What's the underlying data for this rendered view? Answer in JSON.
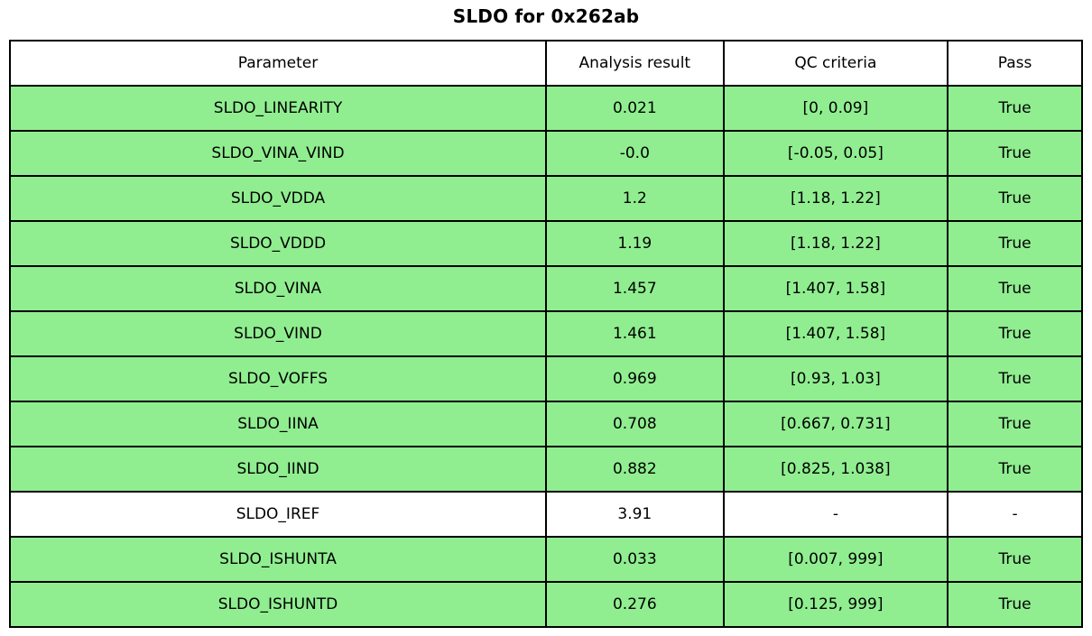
{
  "title": "SLDO for 0x262ab",
  "colors": {
    "pass_green": "#90EE90",
    "plain_white": "#ffffff",
    "border": "#000000",
    "text": "#000000"
  },
  "table": {
    "columns": [
      "Parameter",
      "Analysis result",
      "QC criteria",
      "Pass"
    ],
    "rows": [
      {
        "parameter": "SLDO_LINEARITY",
        "result": "0.021",
        "qc": "[0, 0.09]",
        "pass": "True",
        "highlight": true
      },
      {
        "parameter": "SLDO_VINA_VIND",
        "result": "-0.0",
        "qc": "[-0.05, 0.05]",
        "pass": "True",
        "highlight": true
      },
      {
        "parameter": "SLDO_VDDA",
        "result": "1.2",
        "qc": "[1.18, 1.22]",
        "pass": "True",
        "highlight": true
      },
      {
        "parameter": "SLDO_VDDD",
        "result": "1.19",
        "qc": "[1.18, 1.22]",
        "pass": "True",
        "highlight": true
      },
      {
        "parameter": "SLDO_VINA",
        "result": "1.457",
        "qc": "[1.407, 1.58]",
        "pass": "True",
        "highlight": true
      },
      {
        "parameter": "SLDO_VIND",
        "result": "1.461",
        "qc": "[1.407, 1.58]",
        "pass": "True",
        "highlight": true
      },
      {
        "parameter": "SLDO_VOFFS",
        "result": "0.969",
        "qc": "[0.93, 1.03]",
        "pass": "True",
        "highlight": true
      },
      {
        "parameter": "SLDO_IINA",
        "result": "0.708",
        "qc": "[0.667, 0.731]",
        "pass": "True",
        "highlight": true
      },
      {
        "parameter": "SLDO_IIND",
        "result": "0.882",
        "qc": "[0.825, 1.038]",
        "pass": "True",
        "highlight": true
      },
      {
        "parameter": "SLDO_IREF",
        "result": "3.91",
        "qc": "-",
        "pass": "-",
        "highlight": false
      },
      {
        "parameter": "SLDO_ISHUNTA",
        "result": "0.033",
        "qc": "[0.007, 999]",
        "pass": "True",
        "highlight": true
      },
      {
        "parameter": "SLDO_ISHUNTD",
        "result": "0.276",
        "qc": "[0.125, 999]",
        "pass": "True",
        "highlight": true
      }
    ]
  },
  "chart_data": {
    "type": "table",
    "title": "SLDO for 0x262ab",
    "columns": [
      "Parameter",
      "Analysis result",
      "QC criteria",
      "Pass"
    ],
    "rows": [
      [
        "SLDO_LINEARITY",
        "0.021",
        "[0, 0.09]",
        "True"
      ],
      [
        "SLDO_VINA_VIND",
        "-0.0",
        "[-0.05, 0.05]",
        "True"
      ],
      [
        "SLDO_VDDA",
        "1.2",
        "[1.18, 1.22]",
        "True"
      ],
      [
        "SLDO_VDDD",
        "1.19",
        "[1.18, 1.22]",
        "True"
      ],
      [
        "SLDO_VINA",
        "1.457",
        "[1.407, 1.58]",
        "True"
      ],
      [
        "SLDO_VIND",
        "1.461",
        "[1.407, 1.58]",
        "True"
      ],
      [
        "SLDO_VOFFS",
        "0.969",
        "[0.93, 1.03]",
        "True"
      ],
      [
        "SLDO_IINA",
        "0.708",
        "[0.667, 0.731]",
        "True"
      ],
      [
        "SLDO_IIND",
        "0.882",
        "[0.825, 1.038]",
        "True"
      ],
      [
        "SLDO_IREF",
        "3.91",
        "-",
        "-"
      ],
      [
        "SLDO_ISHUNTA",
        "0.033",
        "[0.007, 999]",
        "True"
      ],
      [
        "SLDO_ISHUNTD",
        "0.276",
        "[0.125, 999]",
        "True"
      ]
    ]
  }
}
